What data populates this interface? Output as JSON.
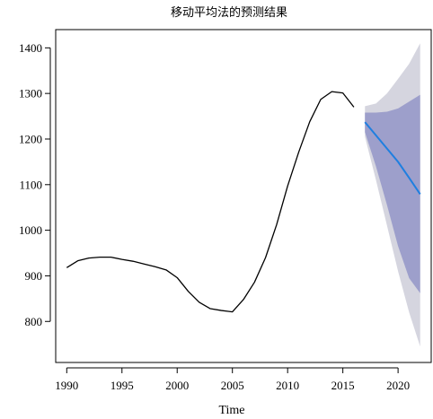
{
  "chart_data": {
    "type": "line",
    "title": "移动平均法的预测结果",
    "xlabel": "Time",
    "ylabel": "",
    "xlim": [
      1989,
      2023
    ],
    "ylim": [
      710,
      1440
    ],
    "xticks": [
      1990,
      1995,
      2000,
      2005,
      2010,
      2015,
      2020
    ],
    "yticks": [
      800,
      900,
      1000,
      1100,
      1200,
      1300,
      1400
    ],
    "grid": false,
    "legend": "none",
    "colors": {
      "history": "#000000",
      "forecast": "#1f7fe0",
      "band95": "#d5d5df",
      "band80": "#9d9fcb"
    },
    "series": [
      {
        "role": "history",
        "x": [
          1990,
          1991,
          1992,
          1993,
          1994,
          1995,
          1996,
          1997,
          1998,
          1999,
          2000,
          2001,
          2002,
          2003,
          2004,
          2005,
          2006,
          2007,
          2008,
          2009,
          2010,
          2011,
          2012,
          2013,
          2014,
          2015,
          2016
        ],
        "y": [
          918,
          933,
          939,
          941,
          941,
          936,
          932,
          926,
          920,
          913,
          896,
          866,
          842,
          828,
          824,
          821,
          848,
          886,
          940,
          1012,
          1097,
          1171,
          1238,
          1287,
          1304,
          1301,
          1270
        ]
      },
      {
        "role": "forecast",
        "x": [
          2017,
          2018,
          2019,
          2020,
          2021,
          2022
        ],
        "y": [
          1237,
          1208,
          1179,
          1150,
          1115,
          1079
        ]
      }
    ],
    "bands": [
      {
        "level": 95,
        "x": [
          2017,
          2018,
          2019,
          2020,
          2021,
          2022
        ],
        "lower": [
          1205,
          1110,
          1010,
          910,
          820,
          745
        ],
        "upper": [
          1272,
          1278,
          1300,
          1332,
          1365,
          1410
        ]
      },
      {
        "level": 80,
        "x": [
          2017,
          2018,
          2019,
          2020,
          2021,
          2022
        ],
        "lower": [
          1215,
          1140,
          1055,
          965,
          895,
          862
        ],
        "upper": [
          1258,
          1258,
          1260,
          1267,
          1282,
          1297
        ]
      }
    ]
  }
}
